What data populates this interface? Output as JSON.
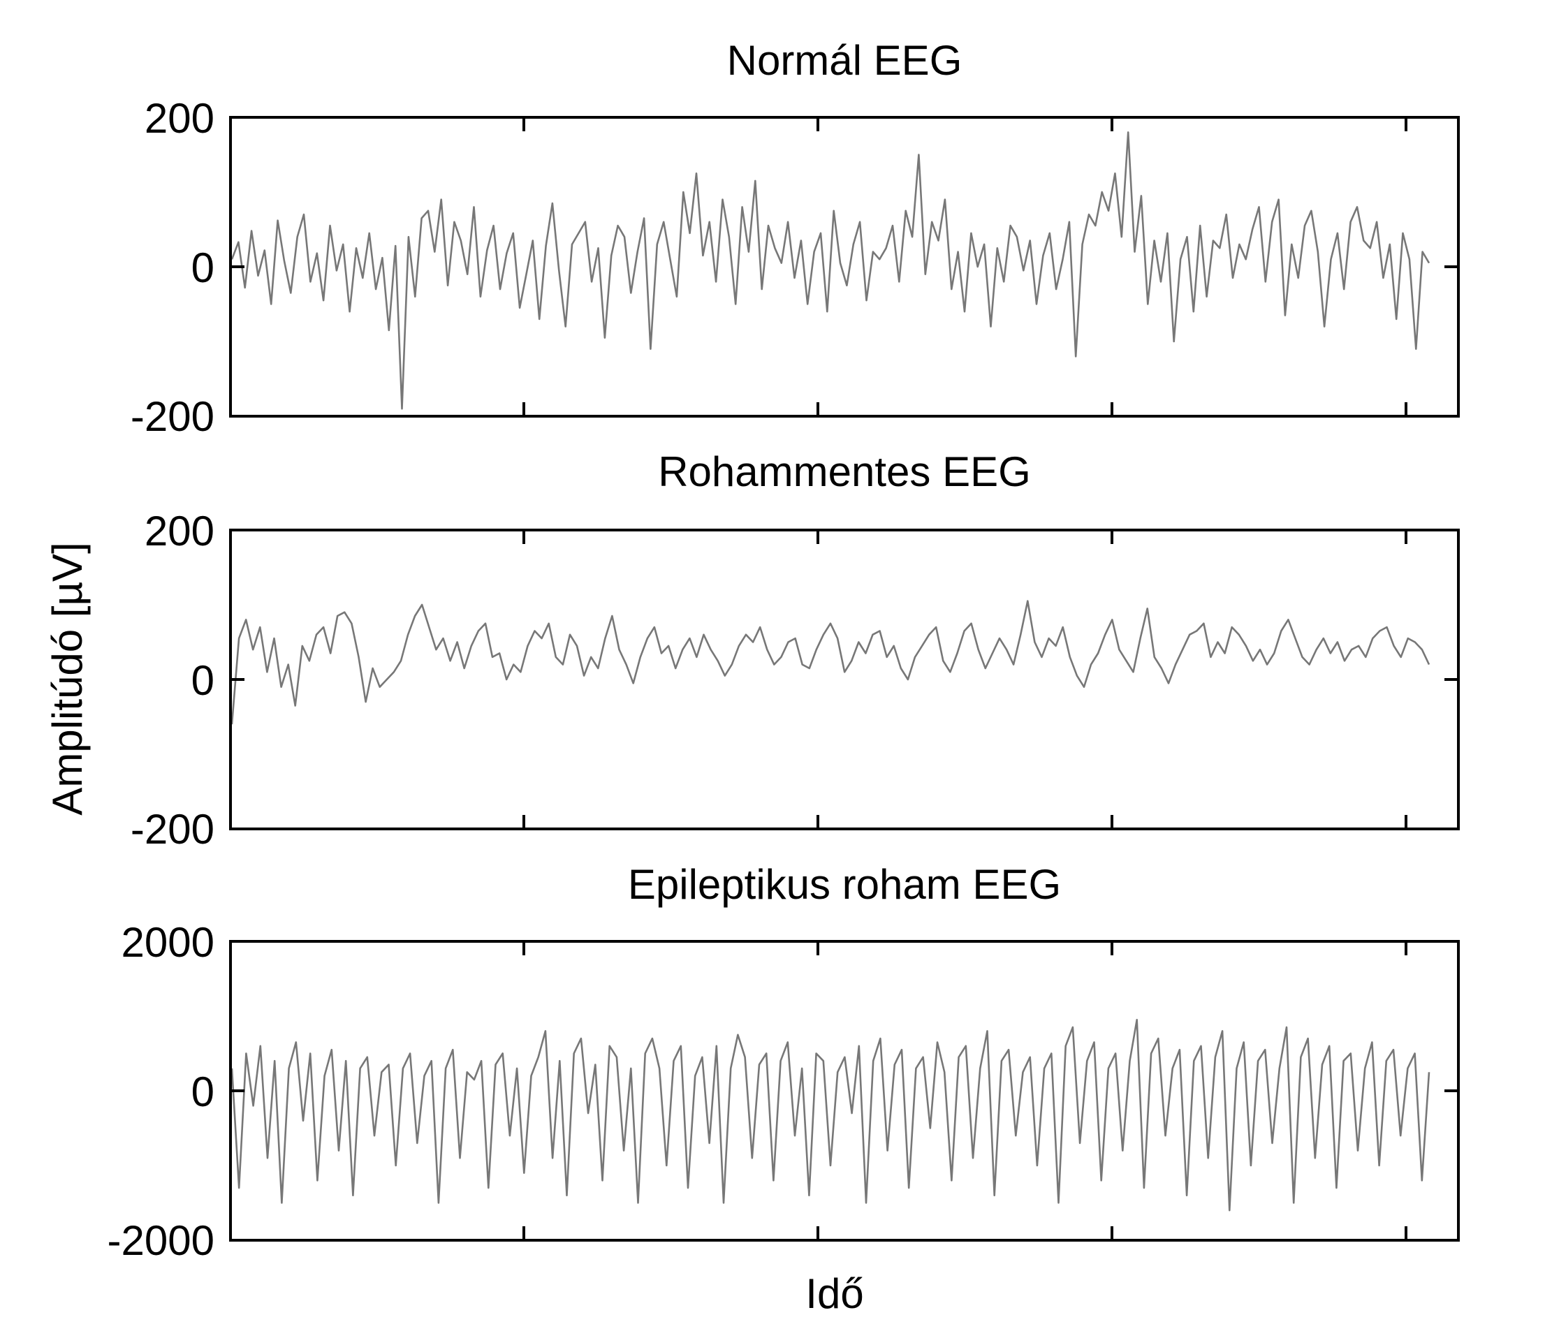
{
  "chart_data": {
    "type": "line",
    "ylabel": "Amplitúdó [µV]",
    "xlabel": "Idő",
    "trace_color": "#777777",
    "grid": false,
    "panels": [
      {
        "title": "Normál EEG",
        "ylim": [
          -200,
          200
        ],
        "yticks": [
          200,
          0,
          -200
        ],
        "ytick_labels": [
          "200",
          "0",
          "-200"
        ],
        "series": [
          {
            "x_range": [
              0,
              100
            ],
            "values": [
              10,
              33,
              -28,
              48,
              -12,
              22,
              -50,
              62,
              8,
              -35,
              40,
              70,
              -20,
              18,
              -45,
              55,
              -5,
              30,
              -60,
              25,
              -15,
              45,
              -30,
              12,
              -85,
              28,
              -190,
              40,
              -40,
              65,
              75,
              20,
              90,
              -25,
              60,
              35,
              -10,
              80,
              -40,
              22,
              55,
              -30,
              18,
              45,
              -55,
              -10,
              35,
              -70,
              28,
              85,
              -5,
              -80,
              30,
              45,
              60,
              -20,
              25,
              -95,
              15,
              55,
              40,
              -35,
              20,
              65,
              -110,
              30,
              60,
              10,
              -40,
              100,
              45,
              125,
              15,
              60,
              -20,
              90,
              40,
              -50,
              80,
              20,
              115,
              -30,
              55,
              25,
              5,
              60,
              -15,
              35,
              -50,
              20,
              45,
              -60,
              75,
              5,
              -25,
              30,
              60,
              -45,
              20,
              10,
              25,
              55,
              -20,
              75,
              40,
              150,
              -10,
              60,
              35,
              90,
              -30,
              20,
              -60,
              45,
              0,
              30,
              -80,
              25,
              -20,
              55,
              40,
              -5,
              35,
              -50,
              15,
              45,
              -30,
              10,
              60,
              -120,
              30,
              70,
              55,
              100,
              75,
              125,
              40,
              180,
              20,
              95,
              -50,
              35,
              -20,
              45,
              -100,
              10,
              40,
              -60,
              55,
              -40,
              35,
              25,
              70,
              -15,
              30,
              10,
              50,
              80,
              -20,
              60,
              90,
              -65,
              30,
              -15,
              55,
              75,
              20,
              -80,
              10,
              45,
              -30,
              60,
              80,
              35,
              25,
              60,
              -15,
              30,
              -70,
              45,
              10,
              -110,
              20,
              5
            ]
          }
        ]
      },
      {
        "title": "Rohammentes EEG",
        "ylim": [
          -200,
          200
        ],
        "yticks": [
          200,
          0,
          -200
        ],
        "ytick_labels": [
          "200",
          "0",
          "-200"
        ],
        "series": [
          {
            "x_range": [
              0,
              100
            ],
            "values": [
              -60,
              55,
              80,
              40,
              70,
              10,
              55,
              -10,
              20,
              -35,
              45,
              25,
              60,
              70,
              35,
              85,
              90,
              75,
              30,
              -30,
              15,
              -10,
              0,
              10,
              25,
              60,
              85,
              100,
              70,
              40,
              55,
              25,
              50,
              15,
              45,
              65,
              75,
              30,
              35,
              0,
              20,
              10,
              45,
              65,
              55,
              75,
              30,
              20,
              60,
              45,
              5,
              30,
              15,
              55,
              85,
              40,
              20,
              -5,
              30,
              55,
              70,
              35,
              45,
              15,
              40,
              55,
              30,
              60,
              40,
              25,
              5,
              20,
              45,
              60,
              50,
              70,
              40,
              20,
              30,
              50,
              55,
              20,
              15,
              40,
              60,
              75,
              55,
              10,
              25,
              50,
              35,
              60,
              65,
              30,
              45,
              15,
              0,
              30,
              45,
              60,
              70,
              25,
              10,
              35,
              65,
              75,
              40,
              15,
              35,
              55,
              40,
              20,
              60,
              105,
              50,
              30,
              55,
              45,
              70,
              30,
              5,
              -10,
              20,
              35,
              60,
              80,
              40,
              25,
              10,
              55,
              95,
              30,
              15,
              -5,
              20,
              40,
              60,
              65,
              75,
              30,
              50,
              35,
              70,
              60,
              45,
              25,
              40,
              20,
              35,
              65,
              80,
              55,
              30,
              20,
              40,
              55,
              35,
              50,
              25,
              40,
              45,
              30,
              55,
              65,
              70,
              45,
              30,
              55,
              50,
              40,
              20
            ]
          }
        ]
      },
      {
        "title": "Epileptikus roham EEG",
        "ylim": [
          -2000,
          2000
        ],
        "yticks": [
          2000,
          0,
          -2000
        ],
        "ytick_labels": [
          "2000",
          "0",
          "-2000"
        ],
        "series": [
          {
            "x_range": [
              0,
              100
            ],
            "values": [
              300,
              -1300,
              500,
              -200,
              600,
              -900,
              400,
              -1500,
              300,
              650,
              -400,
              500,
              -1200,
              200,
              550,
              -800,
              400,
              -1400,
              300,
              450,
              -600,
              250,
              350,
              -1000,
              300,
              500,
              -700,
              200,
              400,
              -1500,
              300,
              550,
              -900,
              250,
              150,
              400,
              -1300,
              350,
              500,
              -600,
              300,
              -1100,
              200,
              450,
              800,
              -900,
              400,
              -1400,
              500,
              700,
              -300,
              350,
              -1200,
              600,
              450,
              -800,
              300,
              -1500,
              500,
              700,
              300,
              -1000,
              400,
              600,
              -1300,
              200,
              450,
              -700,
              600,
              -1500,
              300,
              750,
              450,
              -900,
              350,
              500,
              -1200,
              400,
              650,
              -600,
              300,
              -1400,
              500,
              400,
              -1000,
              250,
              450,
              -300,
              600,
              -1500,
              400,
              700,
              -800,
              350,
              550,
              -1300,
              300,
              450,
              -500,
              650,
              250,
              -1200,
              450,
              600,
              -900,
              300,
              800,
              -1400,
              400,
              550,
              -600,
              250,
              450,
              -1000,
              300,
              500,
              -1500,
              600,
              850,
              -700,
              400,
              650,
              -1200,
              300,
              500,
              -800,
              400,
              950,
              -1300,
              500,
              700,
              -600,
              300,
              550,
              -1400,
              400,
              600,
              -900,
              450,
              800,
              -1600,
              300,
              650,
              -1000,
              400,
              550,
              -700,
              300,
              850,
              -1500,
              450,
              700,
              -900,
              350,
              600,
              -1300,
              400,
              500,
              -800,
              300,
              650,
              -1000,
              400,
              550,
              -600,
              300,
              500,
              -1200,
              250
            ]
          }
        ]
      }
    ]
  }
}
